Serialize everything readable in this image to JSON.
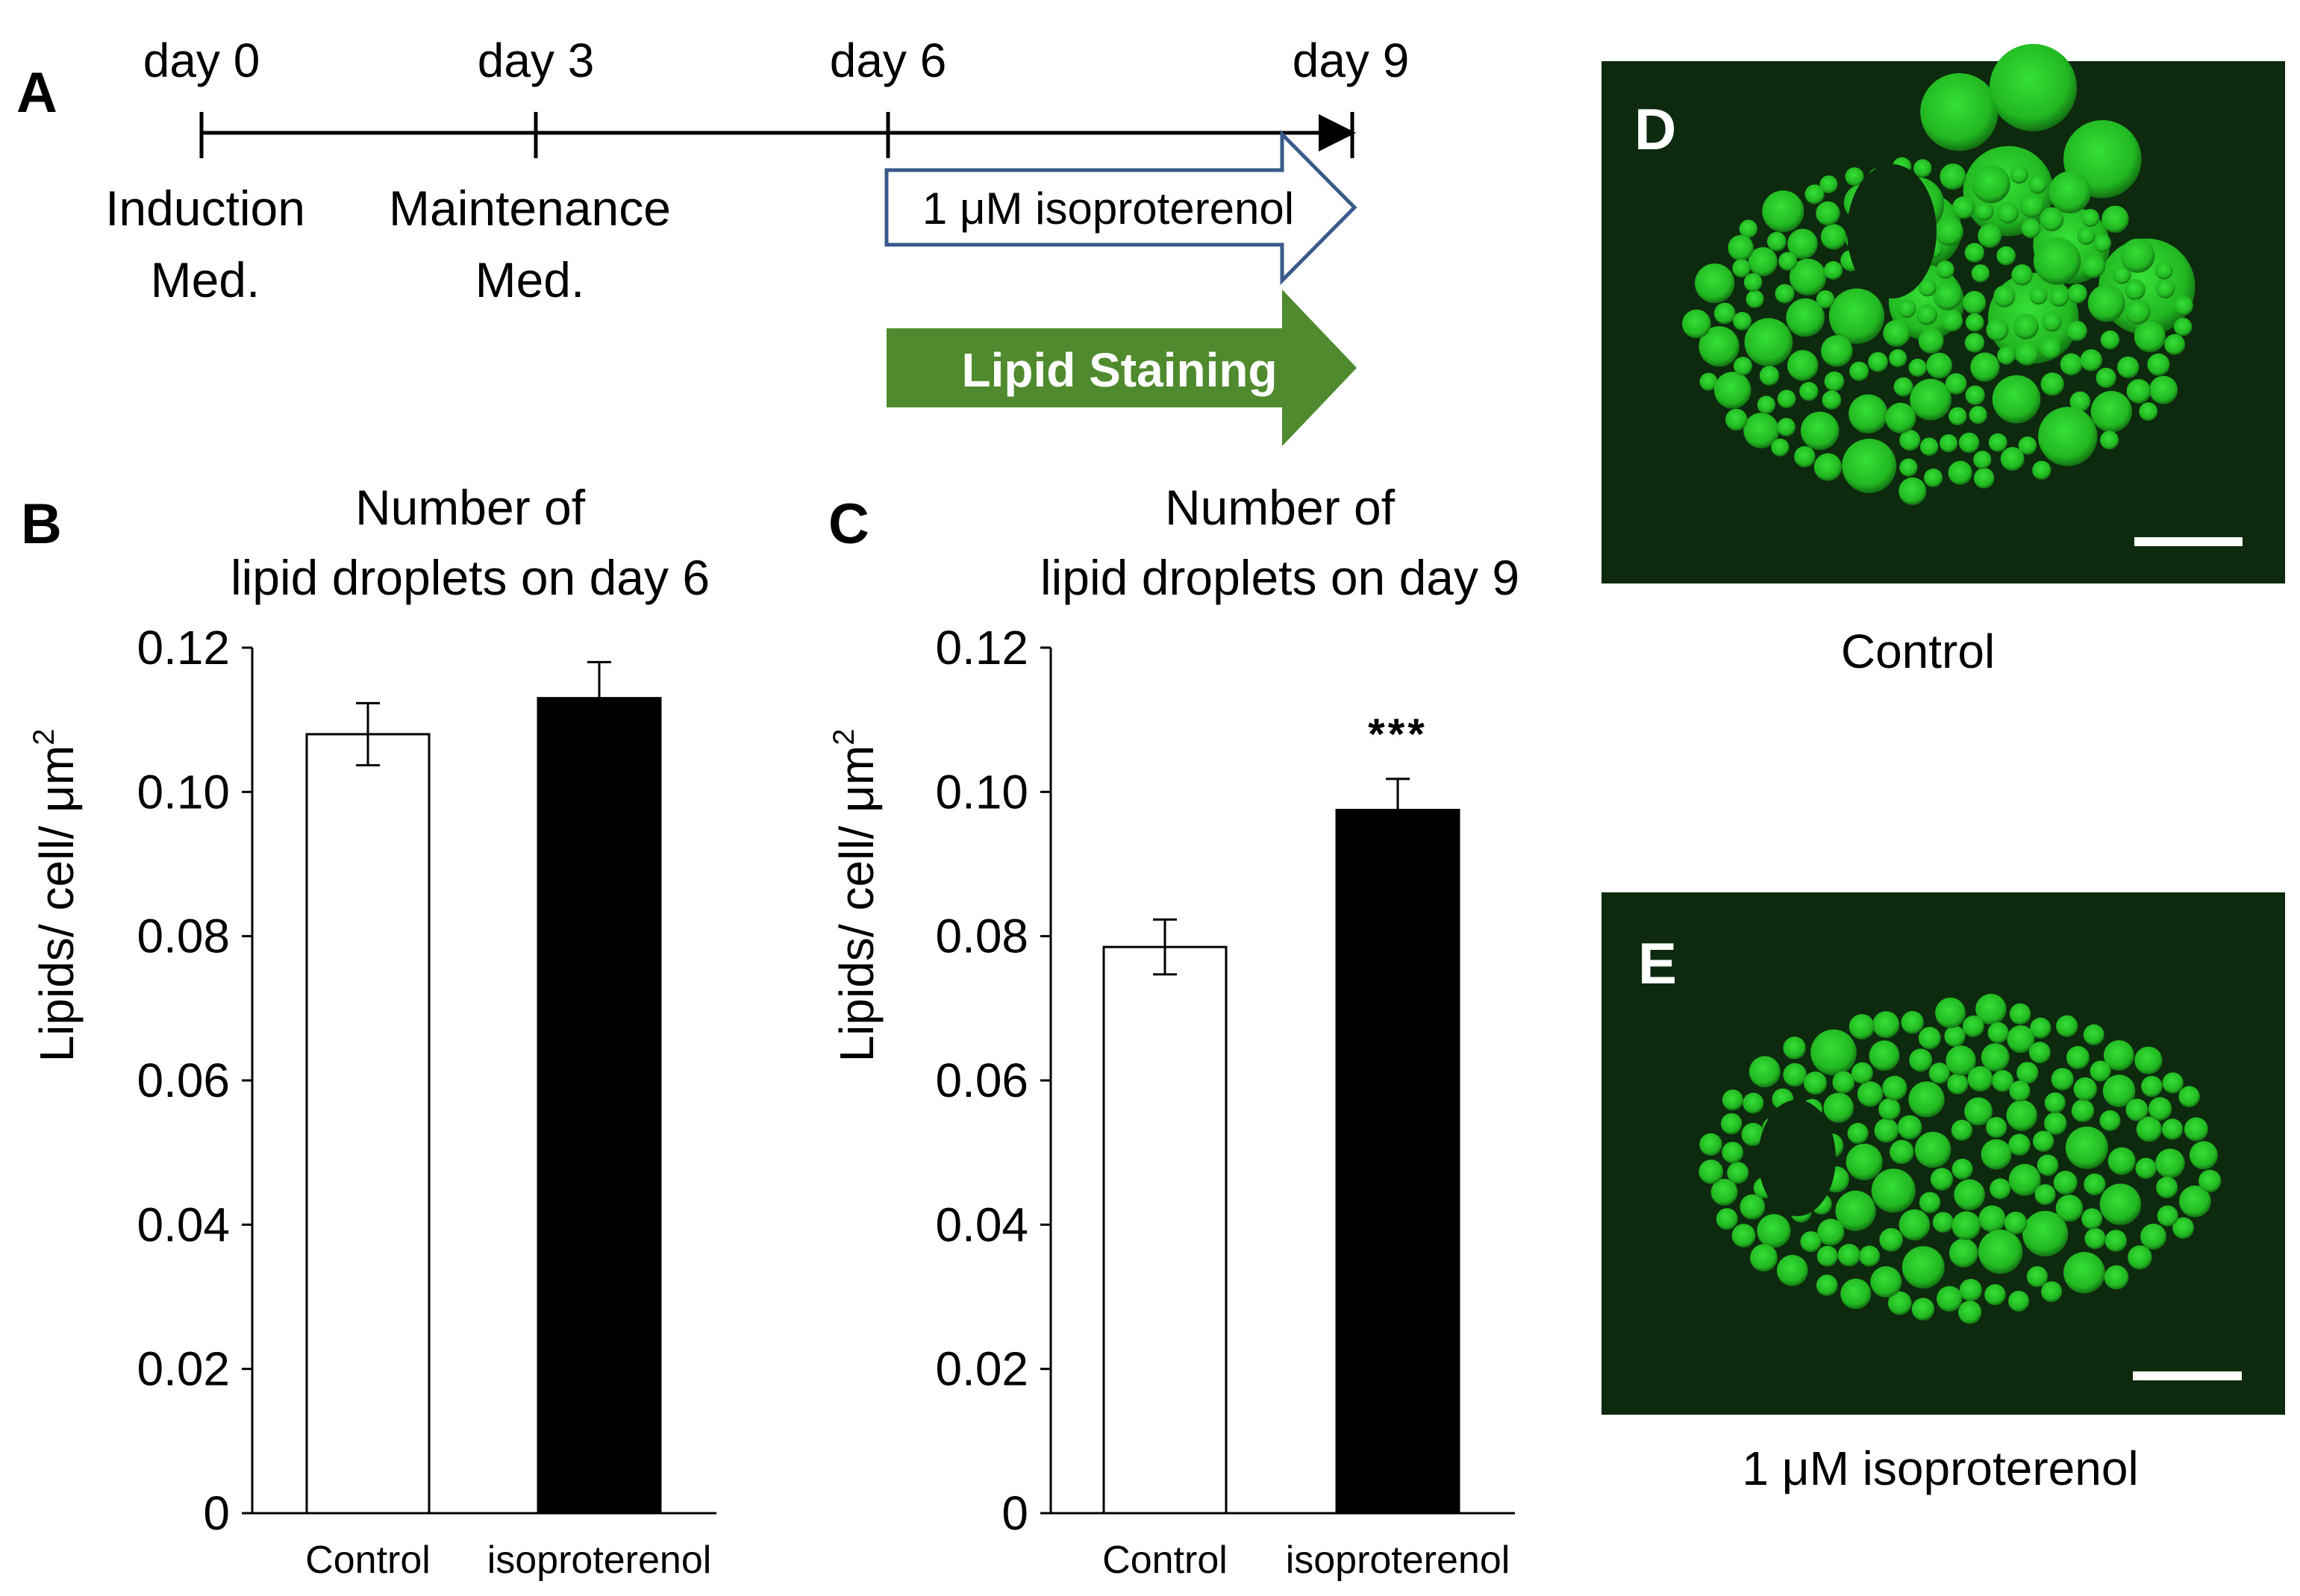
{
  "panels": {
    "a": "A",
    "b": "B",
    "c": "C",
    "d": "D",
    "e": "E"
  },
  "timeline": {
    "days": [
      "day 0",
      "day 3",
      "day 6",
      "day 9"
    ],
    "phases": {
      "induction": [
        "Induction",
        "Med."
      ],
      "maintenance": [
        "Maintenance",
        "Med."
      ]
    },
    "treatment_arrow": "1 μM isoproterenol",
    "staining_arrow": "Lipid Staining",
    "staining_color": "#4f8a2f",
    "treatment_border_color": "#3b5a8c"
  },
  "chart_data": [
    {
      "type": "bar",
      "title": [
        "Number of",
        "lipid droplets on day 6"
      ],
      "categories": [
        "Control",
        "isoproterenol"
      ],
      "values": [
        0.108,
        0.113
      ],
      "errors": [
        0.0043,
        0.005
      ],
      "bar_colors": [
        "#ffffff",
        "#000000"
      ],
      "ylabel": "Lipids/ cell/ μm",
      "ylabel_superscript": "2",
      "ylim": [
        0,
        0.12
      ],
      "yticks": [
        "0",
        "0.02",
        "0.04",
        "0.06",
        "0.08",
        "0.10",
        "0.12"
      ],
      "annotation": ""
    },
    {
      "type": "bar",
      "title": [
        "Number of",
        "lipid droplets on day 9"
      ],
      "categories": [
        "Control",
        "isoproterenol"
      ],
      "values": [
        0.0785,
        0.0975
      ],
      "errors": [
        0.0038,
        0.0043
      ],
      "bar_colors": [
        "#ffffff",
        "#000000"
      ],
      "ylabel": "Lipids/ cell/ μm",
      "ylabel_superscript": "2",
      "ylim": [
        0,
        0.12
      ],
      "yticks": [
        "0",
        "0.02",
        "0.04",
        "0.06",
        "0.08",
        "0.10",
        "0.12"
      ],
      "annotation": "***"
    }
  ],
  "micrographs": {
    "control_caption": "Control",
    "treated_caption": "1 μM isoproterenol",
    "background_color": "#0e2a0e",
    "droplet_color": "#2fd12f"
  }
}
